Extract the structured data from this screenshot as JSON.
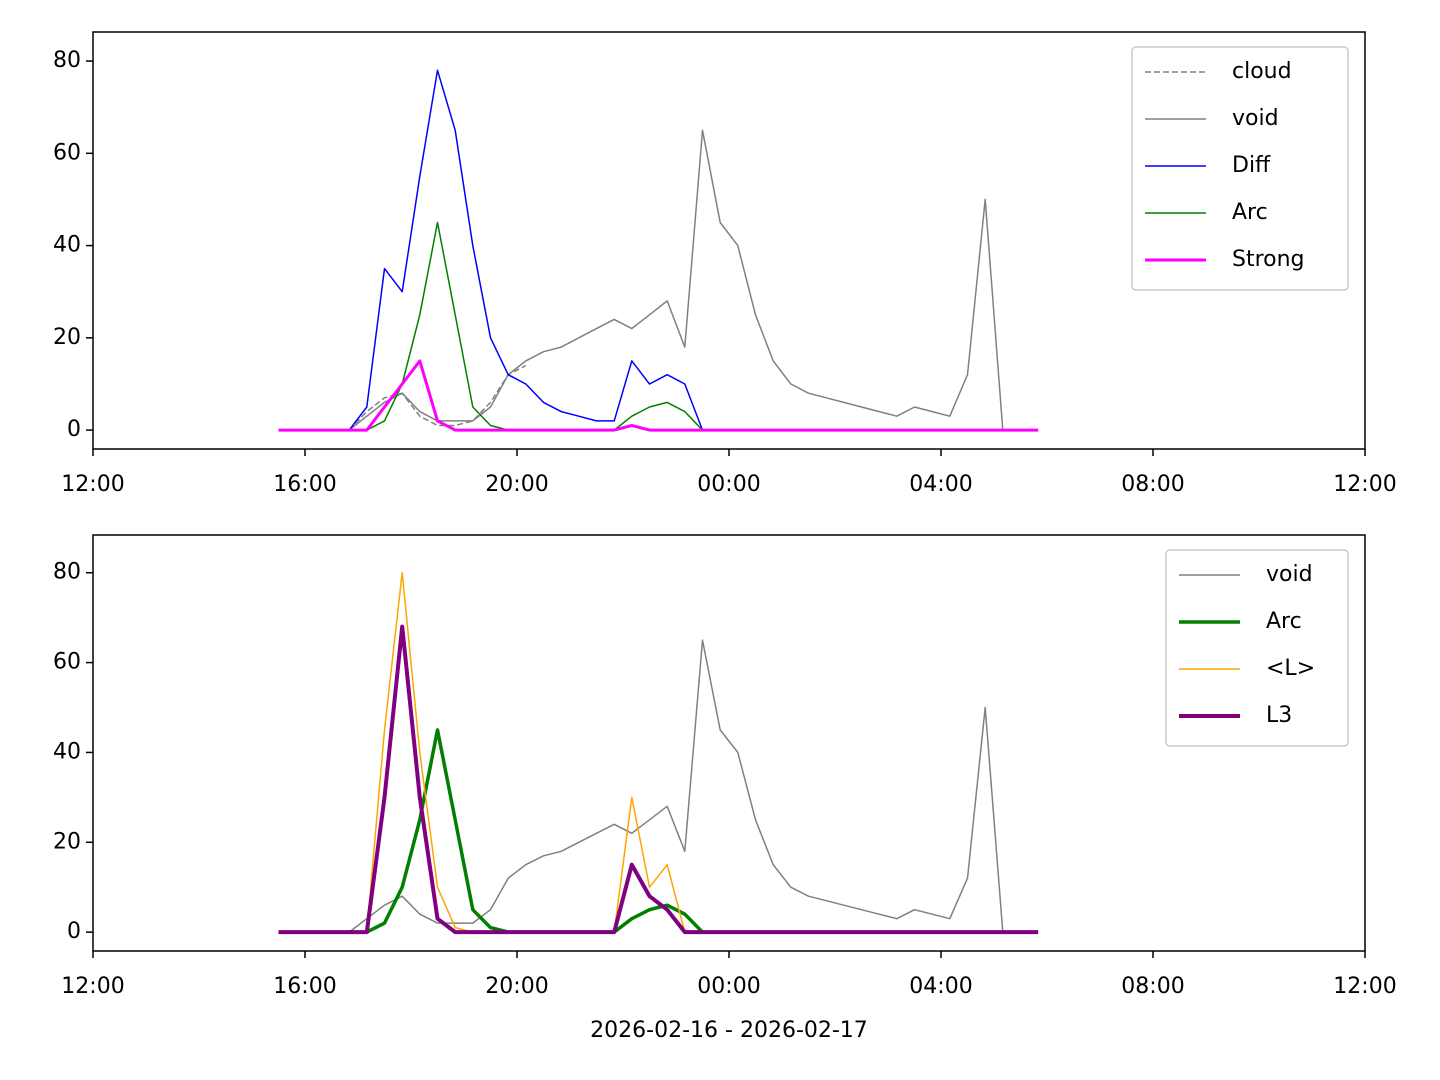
{
  "chart_data": [
    {
      "type": "line",
      "x": [
        "2026-02-16T15:30",
        "2026-02-16T15:50",
        "2026-02-16T16:10",
        "2026-02-16T16:30",
        "2026-02-16T16:50",
        "2026-02-16T17:10",
        "2026-02-16T17:30",
        "2026-02-16T17:50",
        "2026-02-16T18:10",
        "2026-02-16T18:30",
        "2026-02-16T18:50",
        "2026-02-16T19:10",
        "2026-02-16T19:30",
        "2026-02-16T19:50",
        "2026-02-16T20:10",
        "2026-02-16T20:30",
        "2026-02-16T20:50",
        "2026-02-16T21:10",
        "2026-02-16T21:30",
        "2026-02-16T21:50",
        "2026-02-16T22:10",
        "2026-02-16T22:30",
        "2026-02-16T22:50",
        "2026-02-16T23:10",
        "2026-02-16T23:30",
        "2026-02-16T23:50",
        "2026-02-17T00:10",
        "2026-02-17T00:30",
        "2026-02-17T00:50",
        "2026-02-17T01:10",
        "2026-02-17T01:30",
        "2026-02-17T01:50",
        "2026-02-17T02:10",
        "2026-02-17T02:30",
        "2026-02-17T02:50",
        "2026-02-17T03:10",
        "2026-02-17T03:30",
        "2026-02-17T03:50",
        "2026-02-17T04:10",
        "2026-02-17T04:30",
        "2026-02-17T04:50",
        "2026-02-17T05:10",
        "2026-02-17T05:30",
        "2026-02-17T05:50"
      ],
      "xlim": [
        "2026-02-16T12:00",
        "2026-02-17T12:00"
      ],
      "xticks": [
        {
          "value": "2026-02-16T12:00",
          "label": "12:00"
        },
        {
          "value": "2026-02-16T16:00",
          "label": "16:00"
        },
        {
          "value": "2026-02-16T20:00",
          "label": "20:00"
        },
        {
          "value": "2026-02-17T00:00",
          "label": "00:00"
        },
        {
          "value": "2026-02-17T04:00",
          "label": "04:00"
        },
        {
          "value": "2026-02-17T08:00",
          "label": "08:00"
        },
        {
          "value": "2026-02-17T12:00",
          "label": "12:00"
        }
      ],
      "ylim": [
        -4.1,
        86.3
      ],
      "yticks": [
        0,
        20,
        40,
        60,
        80
      ],
      "legend": "upper right",
      "series": [
        {
          "name": "cloud",
          "color": "#808080",
          "linestyle": "dashed",
          "linewidth": 1.5,
          "values": [
            null,
            null,
            null,
            null,
            0,
            4,
            7,
            8,
            3,
            1,
            1,
            2,
            6,
            12,
            14,
            null,
            null,
            null,
            null,
            null,
            null,
            null,
            null,
            null,
            null,
            null,
            null,
            null,
            null,
            null,
            null,
            null,
            null,
            null,
            null,
            null,
            null,
            null,
            null,
            null,
            null,
            null,
            null,
            null
          ]
        },
        {
          "name": "void",
          "color": "#808080",
          "linestyle": "solid",
          "linewidth": 1.5,
          "values": [
            null,
            null,
            null,
            null,
            0,
            3,
            6,
            8,
            4,
            2,
            2,
            2,
            5,
            12,
            15,
            17,
            18,
            20,
            22,
            24,
            22,
            25,
            28,
            18,
            65,
            45,
            40,
            25,
            15,
            10,
            8,
            7,
            6,
            5,
            4,
            3,
            5,
            4,
            3,
            12,
            50,
            0,
            null,
            null
          ]
        },
        {
          "name": "Diff",
          "color": "#0000ff",
          "linestyle": "solid",
          "linewidth": 1.5,
          "values": [
            null,
            null,
            null,
            null,
            0,
            5,
            35,
            30,
            55,
            78,
            65,
            40,
            20,
            12,
            10,
            6,
            4,
            3,
            2,
            2,
            15,
            10,
            12,
            10,
            0,
            null,
            null,
            null,
            null,
            null,
            null,
            null,
            null,
            null,
            null,
            null,
            null,
            null,
            null,
            null,
            null,
            null,
            null,
            null
          ]
        },
        {
          "name": "Arc",
          "color": "#008000",
          "linestyle": "solid",
          "linewidth": 1.5,
          "values": [
            null,
            null,
            null,
            null,
            null,
            0,
            2,
            10,
            25,
            45,
            25,
            5,
            1,
            0,
            0,
            0,
            0,
            0,
            0,
            0,
            3,
            5,
            6,
            4,
            0,
            null,
            null,
            null,
            null,
            null,
            null,
            null,
            null,
            null,
            null,
            null,
            null,
            null,
            null,
            null,
            null,
            null,
            null,
            null
          ]
        },
        {
          "name": "Strong",
          "color": "#ff00ff",
          "linestyle": "solid",
          "linewidth": 3,
          "values": [
            0,
            0,
            0,
            0,
            0,
            0,
            5,
            10,
            15,
            2,
            0,
            0,
            0,
            0,
            0,
            0,
            0,
            0,
            0,
            0,
            1,
            0,
            0,
            0,
            0,
            0,
            0,
            0,
            0,
            0,
            0,
            0,
            0,
            0,
            0,
            0,
            0,
            0,
            0,
            0,
            0,
            0,
            0,
            0
          ]
        }
      ]
    },
    {
      "type": "line",
      "x": [
        "2026-02-16T15:30",
        "2026-02-16T15:50",
        "2026-02-16T16:10",
        "2026-02-16T16:30",
        "2026-02-16T16:50",
        "2026-02-16T17:10",
        "2026-02-16T17:30",
        "2026-02-16T17:50",
        "2026-02-16T18:10",
        "2026-02-16T18:30",
        "2026-02-16T18:50",
        "2026-02-16T19:10",
        "2026-02-16T19:30",
        "2026-02-16T19:50",
        "2026-02-16T20:10",
        "2026-02-16T20:30",
        "2026-02-16T20:50",
        "2026-02-16T21:10",
        "2026-02-16T21:30",
        "2026-02-16T21:50",
        "2026-02-16T22:10",
        "2026-02-16T22:30",
        "2026-02-16T22:50",
        "2026-02-16T23:10",
        "2026-02-16T23:30",
        "2026-02-16T23:50",
        "2026-02-17T00:10",
        "2026-02-17T00:30",
        "2026-02-17T00:50",
        "2026-02-17T01:10",
        "2026-02-17T01:30",
        "2026-02-17T01:50",
        "2026-02-17T02:10",
        "2026-02-17T02:30",
        "2026-02-17T02:50",
        "2026-02-17T03:10",
        "2026-02-17T03:30",
        "2026-02-17T03:50",
        "2026-02-17T04:10",
        "2026-02-17T04:30",
        "2026-02-17T04:50",
        "2026-02-17T05:10",
        "2026-02-17T05:30",
        "2026-02-17T05:50"
      ],
      "xlim": [
        "2026-02-16T12:00",
        "2026-02-17T12:00"
      ],
      "xticks": [
        {
          "value": "2026-02-16T12:00",
          "label": "12:00"
        },
        {
          "value": "2026-02-16T16:00",
          "label": "16:00"
        },
        {
          "value": "2026-02-16T20:00",
          "label": "20:00"
        },
        {
          "value": "2026-02-17T00:00",
          "label": "00:00"
        },
        {
          "value": "2026-02-17T04:00",
          "label": "04:00"
        },
        {
          "value": "2026-02-17T08:00",
          "label": "08:00"
        },
        {
          "value": "2026-02-17T12:00",
          "label": "12:00"
        }
      ],
      "ylim": [
        -4.2,
        88.4
      ],
      "yticks": [
        0,
        20,
        40,
        60,
        80
      ],
      "x_label": "2026-02-16 - 2026-02-17",
      "legend": "upper right",
      "series": [
        {
          "name": "void",
          "color": "#808080",
          "linestyle": "solid",
          "linewidth": 1.5,
          "values": [
            null,
            null,
            null,
            null,
            0,
            3,
            6,
            8,
            4,
            2,
            2,
            2,
            5,
            12,
            15,
            17,
            18,
            20,
            22,
            24,
            22,
            25,
            28,
            18,
            65,
            45,
            40,
            25,
            15,
            10,
            8,
            7,
            6,
            5,
            4,
            3,
            5,
            4,
            3,
            12,
            50,
            0,
            null,
            null
          ]
        },
        {
          "name": "Arc",
          "color": "#008000",
          "linestyle": "solid",
          "linewidth": 3.5,
          "values": [
            null,
            null,
            null,
            null,
            null,
            0,
            2,
            10,
            25,
            45,
            25,
            5,
            1,
            0,
            0,
            0,
            0,
            0,
            0,
            0,
            3,
            5,
            6,
            4,
            0,
            null,
            null,
            null,
            null,
            null,
            null,
            null,
            null,
            null,
            null,
            null,
            null,
            null,
            null,
            null,
            null,
            null,
            null,
            null
          ]
        },
        {
          "name": "<L>",
          "color": "#ffa500",
          "linestyle": "solid",
          "linewidth": 1.5,
          "values": [
            0,
            0,
            0,
            0,
            0,
            0,
            45,
            80,
            40,
            10,
            1,
            0,
            0,
            0,
            0,
            0,
            0,
            0,
            0,
            0,
            30,
            10,
            15,
            0,
            0,
            0,
            0,
            0,
            0,
            0,
            0,
            0,
            0,
            0,
            0,
            0,
            0,
            0,
            0,
            0,
            0,
            0,
            0,
            0
          ]
        },
        {
          "name": "L3",
          "color": "#800080",
          "linestyle": "solid",
          "linewidth": 4,
          "values": [
            0,
            0,
            0,
            0,
            0,
            0,
            30,
            68,
            30,
            3,
            0,
            0,
            0,
            0,
            0,
            0,
            0,
            0,
            0,
            0,
            15,
            8,
            5,
            0,
            0,
            0,
            0,
            0,
            0,
            0,
            0,
            0,
            0,
            0,
            0,
            0,
            0,
            0,
            0,
            0,
            0,
            0,
            0,
            0
          ]
        }
      ]
    }
  ]
}
